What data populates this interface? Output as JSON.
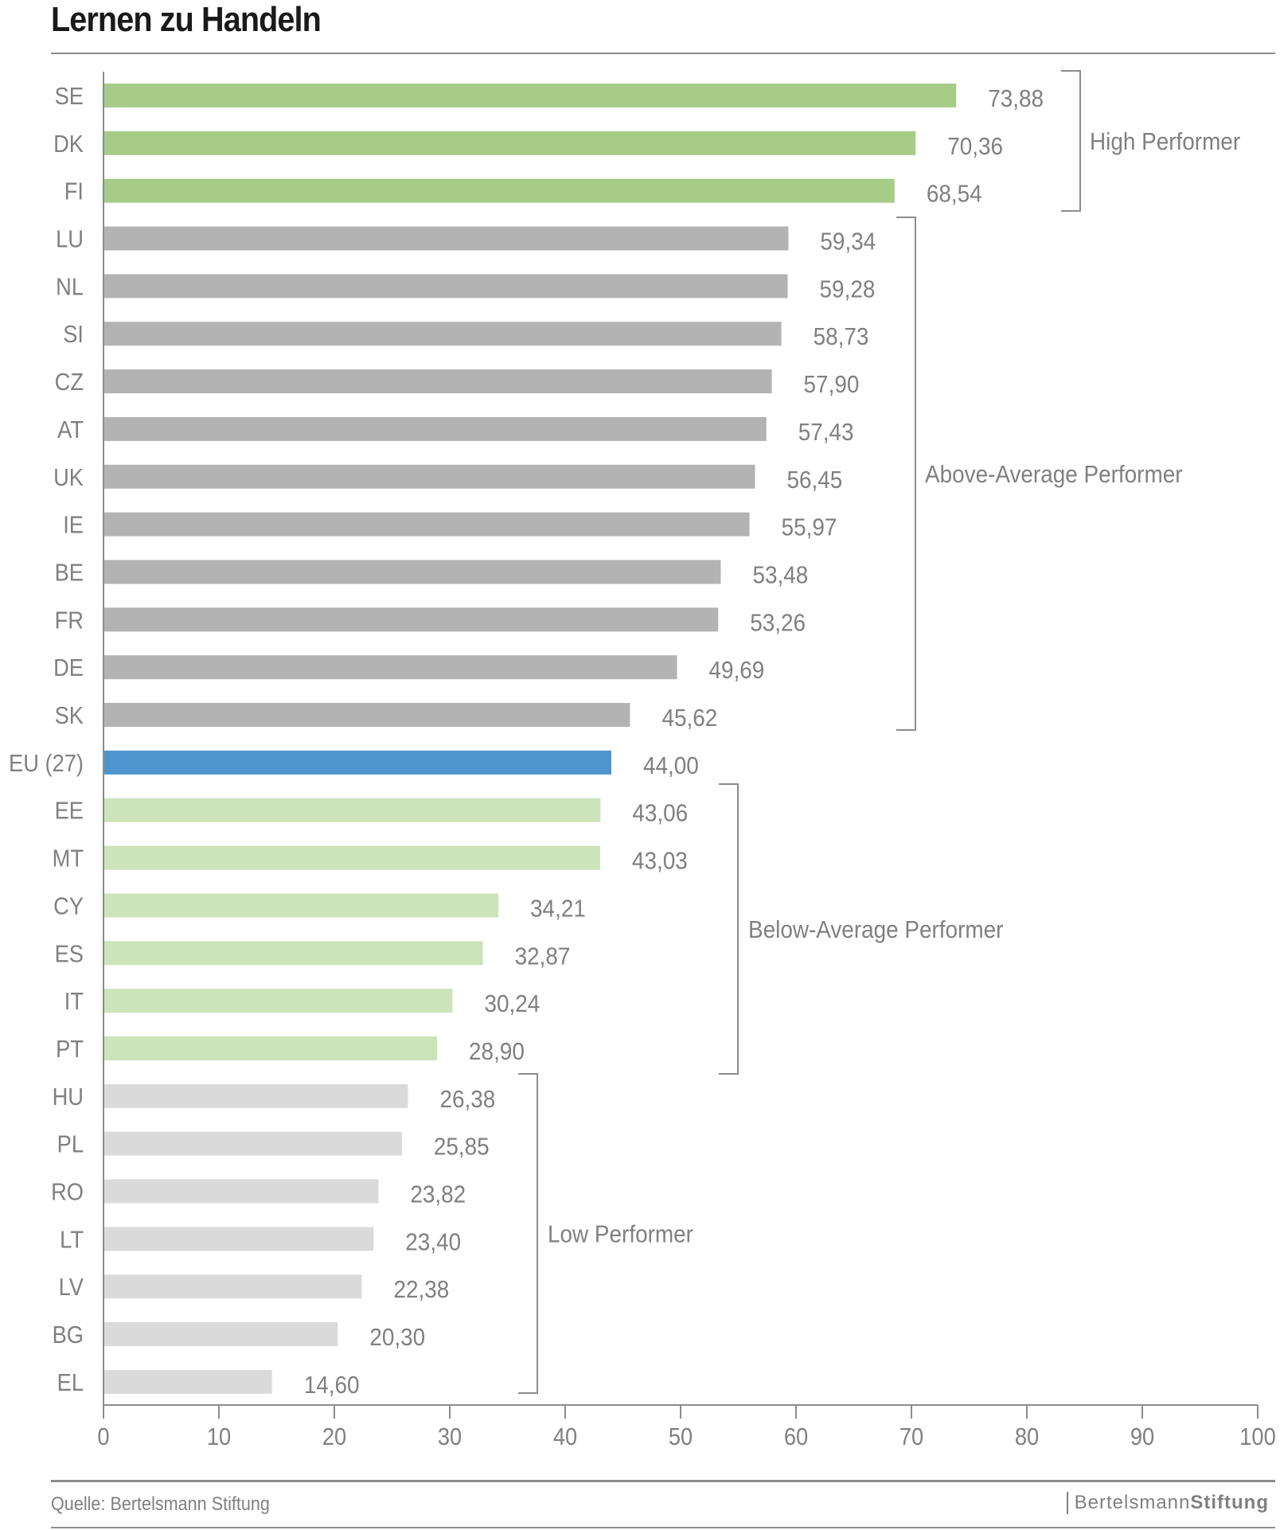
{
  "chart_data": {
    "type": "bar",
    "orientation": "horizontal",
    "title": "Lernen zu Handeln",
    "categories": [
      "SE",
      "DK",
      "FI",
      "LU",
      "NL",
      "SI",
      "CZ",
      "AT",
      "UK",
      "IE",
      "BE",
      "FR",
      "DE",
      "SK",
      "EU (27)",
      "EE",
      "MT",
      "CY",
      "ES",
      "IT",
      "PT",
      "HU",
      "PL",
      "RO",
      "LT",
      "LV",
      "BG",
      "EL"
    ],
    "values": [
      73.88,
      70.36,
      68.54,
      59.34,
      59.28,
      58.73,
      57.9,
      57.43,
      56.45,
      55.97,
      53.48,
      53.26,
      49.69,
      45.62,
      44.0,
      43.06,
      43.03,
      34.21,
      32.87,
      30.24,
      28.9,
      26.38,
      25.85,
      23.82,
      23.4,
      22.38,
      20.3,
      14.6
    ],
    "value_labels": [
      "73,88",
      "70,36",
      "68,54",
      "59,34",
      "59,28",
      "58,73",
      "57,90",
      "57,43",
      "56,45",
      "55,97",
      "53,48",
      "53,26",
      "49,69",
      "45,62",
      "44,00",
      "43,06",
      "43,03",
      "34,21",
      "32,87",
      "30,24",
      "28,90",
      "26,38",
      "25,85",
      "23,82",
      "23,40",
      "22,38",
      "20,30",
      "14,60"
    ],
    "groups": [
      {
        "label": "High Performer",
        "from": "SE",
        "to": "FI",
        "color": "#a6cc88"
      },
      {
        "label": "Above-Average Performer",
        "from": "LU",
        "to": "SK",
        "color": "#b3b3b4"
      },
      {
        "label": "Below-Average Performer",
        "from": "EE",
        "to": "PT",
        "color": "#cde3b9"
      },
      {
        "label": "Low Performer",
        "from": "HU",
        "to": "EL",
        "color": "#dadadb"
      }
    ],
    "highlight": {
      "category": "EU (27)",
      "color": "#4d96cd"
    },
    "xlim": [
      0,
      100
    ],
    "xticks": [
      0,
      10,
      20,
      30,
      40,
      50,
      60,
      70,
      80,
      90,
      100
    ],
    "xlabel": "",
    "ylabel": "",
    "grid": false
  },
  "footer": {
    "source": "Quelle:  Bertelsmann Stiftung",
    "brand_light": "Bertelsmann",
    "brand_bold": "Stiftung"
  }
}
